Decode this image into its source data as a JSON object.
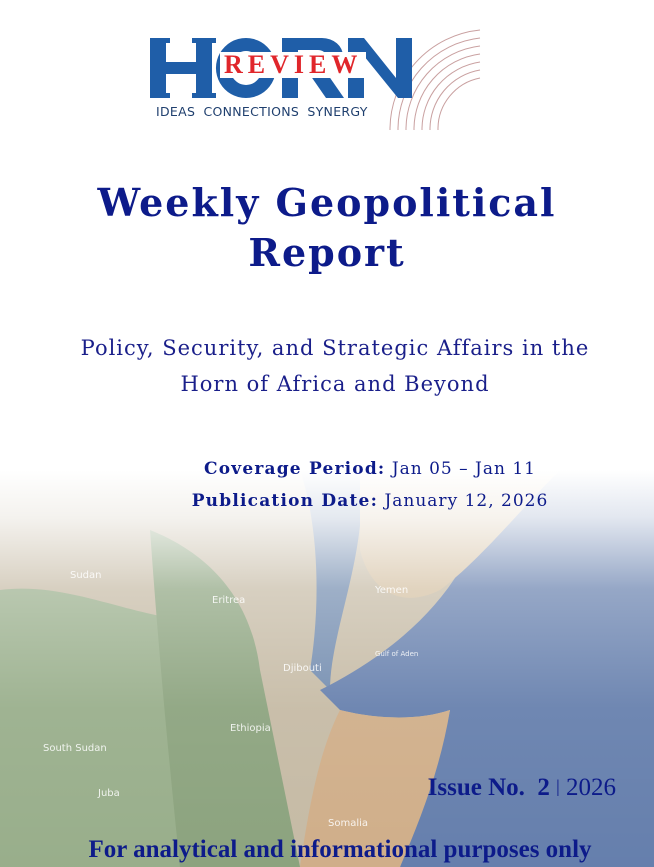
{
  "logo": {
    "main": "HORN",
    "overlay": "REVIEW",
    "tagline": "IDEAS  CONNECTIONS  SYNERGY",
    "colors": {
      "blue": "#1f5ea8",
      "red": "#e0262b"
    }
  },
  "title": {
    "line1": "Weekly Geopolitical",
    "line2": "Report"
  },
  "subtitle": {
    "line1": "Policy, Security, and Strategic Affairs in the",
    "line2": "Horn of Africa and Beyond"
  },
  "coverage": {
    "label": "Coverage Period:",
    "value": "Jan 05 – Jan 11"
  },
  "publication": {
    "label": "Publication Date:",
    "value": "January 12, 2026"
  },
  "issue": {
    "label": "Issue No.",
    "number": "2",
    "separator": "|",
    "year": "2026"
  },
  "disclaimer": "For analytical and informational purposes only",
  "map": {
    "labels": [
      "Sudan",
      "Eritrea",
      "Yemen",
      "Djibouti",
      "Gulf of Aden",
      "Ethiopia",
      "South Sudan",
      "Juba",
      "Somalia"
    ]
  },
  "colors": {
    "text": "#0d1b8a"
  }
}
